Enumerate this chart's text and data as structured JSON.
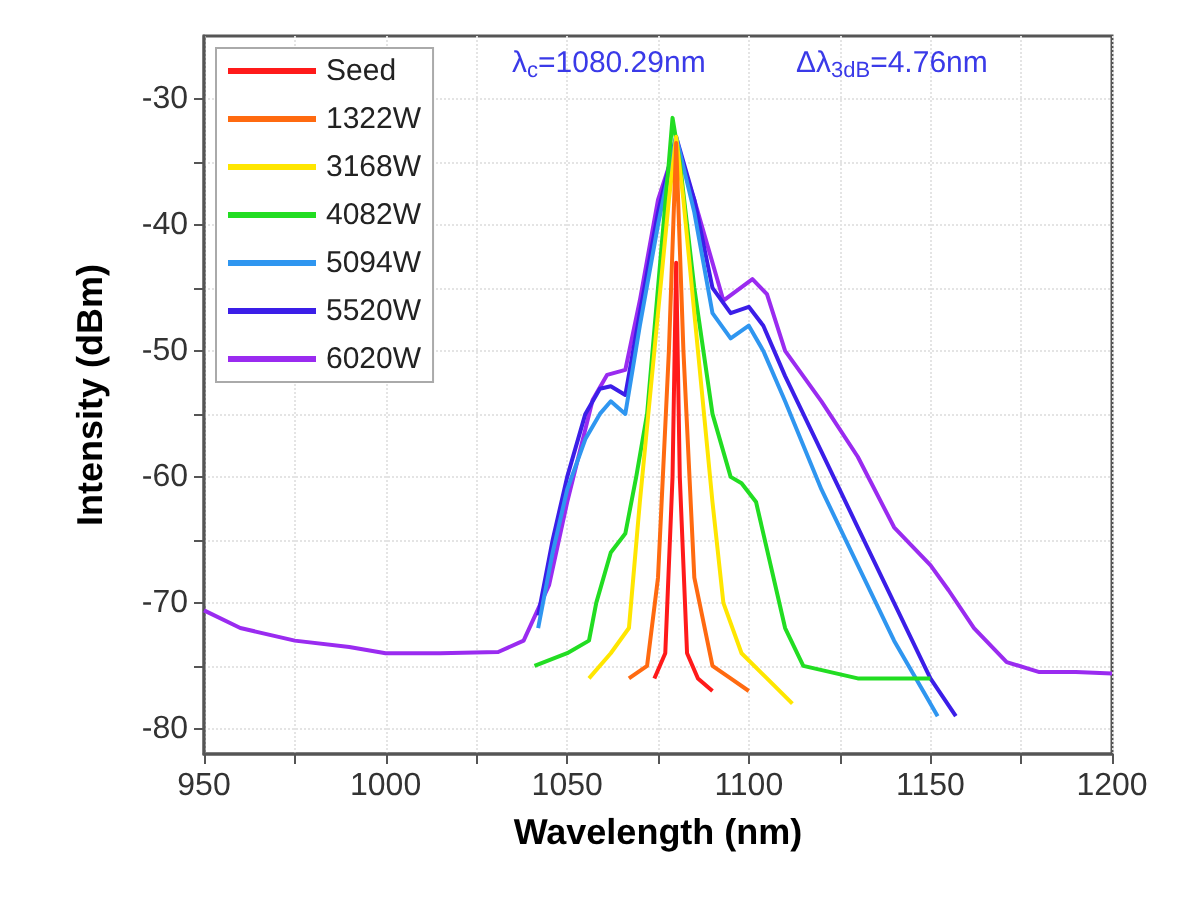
{
  "chart_data": {
    "type": "line",
    "xlabel": "Wavelength (nm)",
    "ylabel": "Intensity (dBm)",
    "annotations": [
      "λ$_{c}$=1080.29nm",
      "Δλ$_{3dB}$=4.76nm"
    ],
    "xlim": [
      950,
      1200
    ],
    "ylim": [
      -82,
      -25
    ],
    "xticks": [
      950,
      {
        "value": 975,
        "label": null
      },
      1000,
      {
        "value": 1025,
        "label": null
      },
      1050,
      {
        "value": 1075,
        "label": null
      },
      1100,
      {
        "value": 1125,
        "label": null
      },
      1150,
      {
        "value": 1175,
        "label": null
      },
      1200
    ],
    "yticks": [
      -80,
      {
        "value": -75,
        "label": null
      },
      -70,
      {
        "value": -65,
        "label": null
      },
      -60,
      {
        "value": -55,
        "label": null
      },
      -50,
      {
        "value": -45,
        "label": null
      },
      -40,
      {
        "value": -35,
        "label": null
      },
      -30
    ],
    "grid": true,
    "legend": "top left",
    "series": [
      {
        "name": "Seed",
        "color": "#ff1a1a",
        "x": [
          1074,
          1077,
          1079,
          1080,
          1081,
          1083,
          1086,
          1090
        ],
        "values": [
          -76,
          -74,
          -60,
          -43,
          -60,
          -74,
          -76,
          -77
        ]
      },
      {
        "name": "1322W",
        "color": "#ff6a10",
        "x": [
          1067,
          1072,
          1075,
          1078,
          1080,
          1082,
          1085,
          1090,
          1095,
          1100
        ],
        "values": [
          -76,
          -75,
          -68,
          -50,
          -33.5,
          -50,
          -68,
          -75,
          -76,
          -77
        ]
      },
      {
        "name": "3168W",
        "color": "#ffe600",
        "x": [
          1056,
          1062,
          1067,
          1070,
          1074,
          1078,
          1080,
          1082,
          1086,
          1090,
          1093,
          1098,
          1105,
          1112
        ],
        "values": [
          -76,
          -74,
          -72,
          -62,
          -50,
          -38,
          -33,
          -38,
          -50,
          -62,
          -70,
          -74,
          -76,
          -78
        ]
      },
      {
        "name": "4082W",
        "color": "#22dd22",
        "x": [
          1041,
          1050,
          1056,
          1058,
          1062,
          1066,
          1069,
          1072,
          1075,
          1078,
          1079,
          1081,
          1085,
          1090,
          1095,
          1098,
          1102,
          1106,
          1110,
          1115,
          1130,
          1145,
          1150
        ],
        "values": [
          -75,
          -74,
          -73,
          -70,
          -66,
          -64.5,
          -60,
          -55,
          -45,
          -35,
          -31.5,
          -35,
          -45,
          -55,
          -60,
          -60.5,
          -62,
          -67,
          -72,
          -75,
          -76,
          -76,
          -76
        ]
      },
      {
        "name": "5094W",
        "color": "#2f96f0",
        "x": [
          1042,
          1046,
          1050,
          1055,
          1059,
          1062,
          1066,
          1070,
          1075,
          1080,
          1085,
          1090,
          1095,
          1100,
          1104,
          1110,
          1120,
          1130,
          1140,
          1148,
          1152
        ],
        "values": [
          -72,
          -66,
          -61,
          -57,
          -55,
          -54,
          -55,
          -48,
          -40,
          -33,
          -39,
          -47,
          -49,
          -48,
          -50,
          -54,
          -61,
          -67,
          -73,
          -77,
          -79
        ]
      },
      {
        "name": "5520W",
        "color": "#3b1ee8",
        "x": [
          1042,
          1046,
          1050,
          1055,
          1059,
          1062,
          1066,
          1070,
          1075,
          1080,
          1085,
          1090,
          1095,
          1100,
          1104,
          1110,
          1120,
          1130,
          1140,
          1150,
          1157
        ],
        "values": [
          -71,
          -65,
          -60,
          -55,
          -53,
          -52.8,
          -53.5,
          -47,
          -39,
          -33,
          -38,
          -45,
          -47,
          -46.5,
          -48,
          -52,
          -58,
          -64,
          -70,
          -76,
          -79
        ]
      },
      {
        "name": "6020W",
        "color": "#9a2bf0",
        "x": [
          950,
          960,
          975,
          990,
          1000,
          1015,
          1031,
          1038,
          1045,
          1050,
          1057,
          1061,
          1066,
          1070,
          1075,
          1080,
          1085,
          1093,
          1101,
          1105,
          1110,
          1120,
          1130,
          1140,
          1150,
          1155,
          1162,
          1171,
          1180,
          1190,
          1200
        ],
        "values": [
          -70.6,
          -72,
          -73,
          -73.5,
          -74,
          -74,
          -73.9,
          -73,
          -68.6,
          -62,
          -53.9,
          -51.9,
          -51.5,
          -46,
          -38,
          -33.6,
          -38,
          -46,
          -44.3,
          -45.5,
          -50,
          -54,
          -58.4,
          -64,
          -67,
          -69,
          -72,
          -74.7,
          -75.5,
          -75.5,
          -75.6
        ]
      }
    ]
  }
}
